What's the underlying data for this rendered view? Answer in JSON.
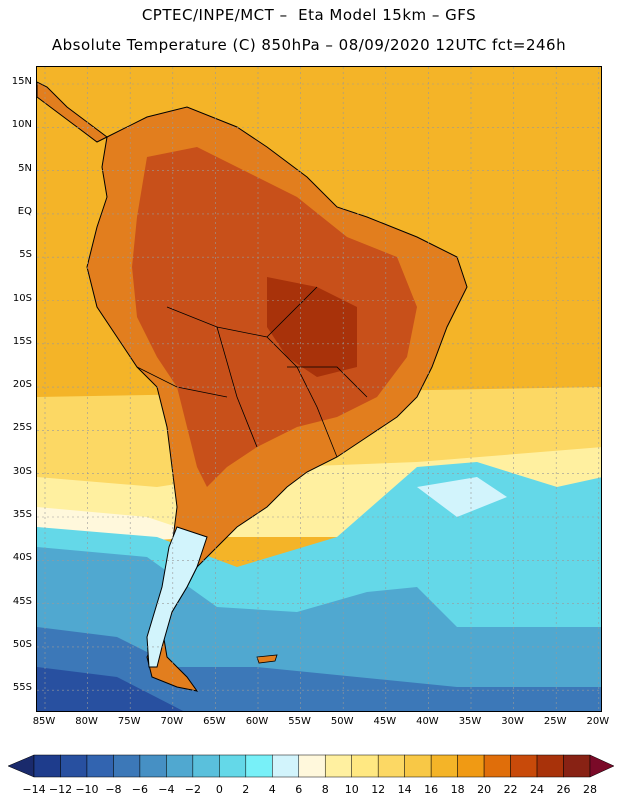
{
  "header": {
    "line1": "CPTEC/INPE/MCT –  Eta Model 15km – GFS",
    "line2": "Absolute Temperature (C) 850hPa – 08/09/2020 12UTC fct=246h"
  },
  "map": {
    "lat_labels": [
      "15N",
      "10N",
      "5N",
      "EQ",
      "5S",
      "10S",
      "15S",
      "20S",
      "25S",
      "30S",
      "35S",
      "40S",
      "45S",
      "50S",
      "55S"
    ],
    "lon_labels": [
      "85W",
      "80W",
      "75W",
      "70W",
      "65W",
      "60W",
      "55W",
      "50W",
      "45W",
      "40W",
      "35W",
      "30W",
      "25W",
      "20W"
    ],
    "gridlines": true
  },
  "colorbar": {
    "labels": [
      "-14",
      "-12",
      "-10",
      "-8",
      "-6",
      "-4",
      "-2",
      "0",
      "2",
      "4",
      "6",
      "8",
      "10",
      "12",
      "14",
      "16",
      "18",
      "20",
      "22",
      "24",
      "26",
      "28"
    ],
    "colors": [
      "#1e3c8c",
      "#2850a0",
      "#3264b0",
      "#3c78b8",
      "#4690c4",
      "#50a8d0",
      "#5ac0dc",
      "#64d8e8",
      "#78f0f8",
      "#d2f4fc",
      "#fff8dc",
      "#fff0a0",
      "#ffe882",
      "#fcd864",
      "#f8c846",
      "#f4b428",
      "#f09a14",
      "#e06e0a",
      "#c84a0a",
      "#a8320a",
      "#882214"
    ],
    "low_arrow_color": "#1a2a6c",
    "high_arrow_color": "#7a0a28"
  }
}
